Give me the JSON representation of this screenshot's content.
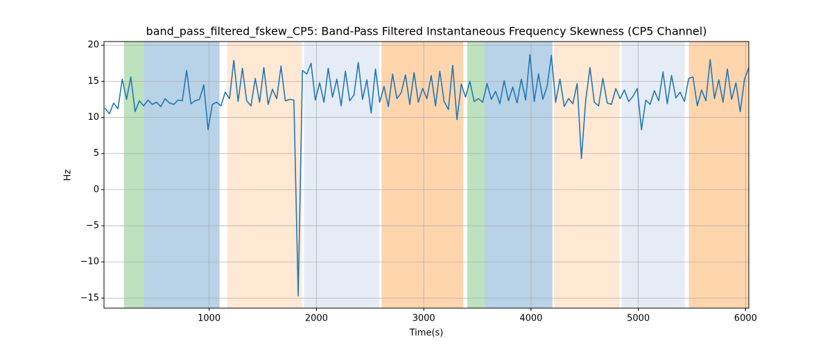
{
  "chart_data": {
    "type": "line",
    "title": "band_pass_filtered_fskew_CP5: Band-Pass Filtered Instantaneous Frequency Skewness (CP5 Channel)",
    "xlabel": "Time(s)",
    "ylabel": "Hz",
    "xlim": [
      20,
      6030
    ],
    "ylim": [
      -16.4,
      20.5
    ],
    "xticks": [
      1000,
      2000,
      3000,
      4000,
      5000,
      6000
    ],
    "yticks": [
      {
        "value": -15,
        "label": "−15"
      },
      {
        "value": -10,
        "label": "−10"
      },
      {
        "value": -5,
        "label": "−5"
      },
      0,
      5,
      10,
      15,
      20
    ],
    "grid": true,
    "spans": [
      {
        "start": 206,
        "end": 387,
        "color": "#bde2bd"
      },
      {
        "start": 387,
        "end": 1097,
        "color": "#b8d2e7"
      },
      {
        "start": 1168,
        "end": 1865,
        "color": "#ffe8d4"
      },
      {
        "start": 1884,
        "end": 2587,
        "color": "#e5ecf6"
      },
      {
        "start": 2606,
        "end": 3368,
        "color": "#ffd5ae"
      },
      {
        "start": 3406,
        "end": 3568,
        "color": "#bde2bd"
      },
      {
        "start": 3568,
        "end": 4200,
        "color": "#b8d2e7"
      },
      {
        "start": 4213,
        "end": 4826,
        "color": "#ffe8d4"
      },
      {
        "start": 4845,
        "end": 5432,
        "color": "#e5ecf6"
      },
      {
        "start": 5471,
        "end": 6026,
        "color": "#ffd5ae"
      }
    ],
    "x": [
      30,
      70,
      110,
      150,
      190,
      230,
      270,
      310,
      350,
      390,
      430,
      470,
      510,
      550,
      590,
      630,
      670,
      710,
      750,
      790,
      830,
      870,
      910,
      950,
      990,
      1030,
      1070,
      1110,
      1150,
      1190,
      1230,
      1270,
      1310,
      1350,
      1390,
      1430,
      1470,
      1510,
      1550,
      1590,
      1630,
      1670,
      1710,
      1750,
      1790,
      1830,
      1870,
      1910,
      1950,
      1990,
      2030,
      2070,
      2110,
      2150,
      2190,
      2230,
      2270,
      2310,
      2350,
      2390,
      2430,
      2470,
      2510,
      2550,
      2590,
      2630,
      2670,
      2710,
      2750,
      2790,
      2830,
      2870,
      2910,
      2950,
      2990,
      3030,
      3070,
      3110,
      3150,
      3190,
      3230,
      3270,
      3310,
      3350,
      3390,
      3430,
      3470,
      3510,
      3550,
      3590,
      3630,
      3670,
      3710,
      3750,
      3790,
      3830,
      3870,
      3910,
      3950,
      3990,
      4030,
      4070,
      4110,
      4150,
      4190,
      4230,
      4270,
      4310,
      4350,
      4390,
      4430,
      4470,
      4510,
      4550,
      4590,
      4630,
      4670,
      4710,
      4750,
      4790,
      4830,
      4870,
      4910,
      4950,
      4990,
      5030,
      5070,
      5110,
      5150,
      5190,
      5230,
      5270,
      5310,
      5350,
      5390,
      5430,
      5470,
      5510,
      5550,
      5590,
      5630,
      5670,
      5710,
      5750,
      5790,
      5830,
      5870,
      5910,
      5950,
      5990,
      6030
    ],
    "series": [
      {
        "color": "#1f77b4",
        "values": [
          11.3,
          10.5,
          12.0,
          11.2,
          15.3,
          12.5,
          15.6,
          10.8,
          12.3,
          11.6,
          12.4,
          11.8,
          12.1,
          11.5,
          12.6,
          12.0,
          11.8,
          12.4,
          12.3,
          16.5,
          11.9,
          12.3,
          12.5,
          14.5,
          8.3,
          11.8,
          12.1,
          11.6,
          13.5,
          12.6,
          17.9,
          12.2,
          16.8,
          12.3,
          11.6,
          15.4,
          12.1,
          16.9,
          11.8,
          13.9,
          12.6,
          17.1,
          12.3,
          12.5,
          12.4,
          -14.7,
          16.5,
          16.0,
          17.5,
          12.4,
          14.8,
          12.1,
          16.8,
          12.8,
          15.3,
          11.6,
          16.4,
          12.3,
          13.1,
          17.6,
          12.5,
          15.2,
          10.6,
          16.7,
          12.1,
          14.3,
          11.5,
          16.0,
          12.6,
          13.4,
          15.9,
          11.8,
          16.2,
          12.1,
          14.0,
          12.6,
          15.8,
          11.6,
          16.4,
          12.2,
          11.1,
          17.2,
          9.7,
          14.6,
          12.8,
          15.0,
          12.2,
          12.6,
          12.1,
          14.7,
          12.5,
          13.6,
          11.9,
          15.1,
          12.3,
          14.2,
          12.0,
          15.3,
          12.4,
          18.7,
          12.2,
          16.0,
          12.5,
          14.3,
          18.6,
          12.1,
          15.3,
          11.5,
          12.6,
          11.9,
          14.7,
          4.3,
          12.4,
          16.9,
          12.1,
          11.6,
          15.4,
          12.0,
          11.8,
          14.0,
          12.6,
          13.8,
          12.2,
          12.9,
          14.0,
          8.3,
          12.4,
          11.8,
          13.7,
          12.3,
          16.3,
          11.9,
          15.8,
          12.7,
          13.5,
          12.2,
          15.4,
          15.6,
          11.6,
          13.8,
          12.3,
          18.0,
          12.6,
          15.2,
          12.1,
          16.7,
          12.5,
          14.8,
          10.8,
          15.3,
          16.9
        ]
      }
    ]
  }
}
